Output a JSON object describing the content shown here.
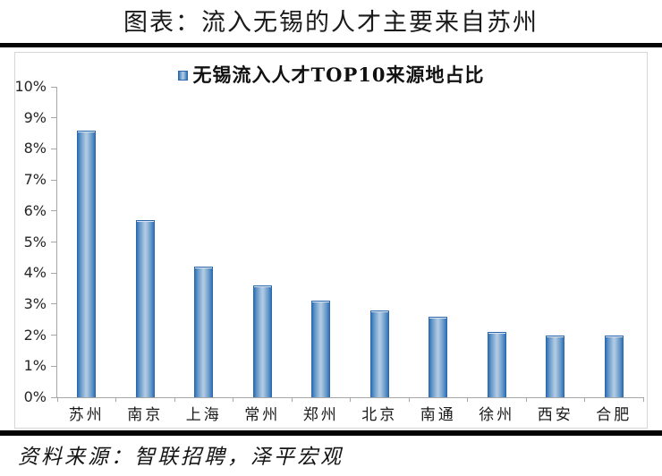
{
  "header": {
    "title": "图表：流入无锡的人才主要来自苏州"
  },
  "footer": {
    "source": "资料来源：智联招聘，泽平宏观"
  },
  "chart_data": {
    "type": "bar",
    "title": "无锡流入人才TOP10来源地占比",
    "legend_position": "top-center",
    "categories": [
      "苏州",
      "南京",
      "上海",
      "常州",
      "郑州",
      "北京",
      "南通",
      "徐州",
      "西安",
      "合肥"
    ],
    "values": [
      8.6,
      5.7,
      4.2,
      3.6,
      3.1,
      2.8,
      2.6,
      2.1,
      2.0,
      2.0
    ],
    "value_unit": "%",
    "xlabel": "",
    "ylabel": "",
    "ylim": [
      0,
      10
    ],
    "y_tick_step": 1,
    "y_tick_suffix": "%",
    "grid": false,
    "colors": {
      "bar_edge": "#3273b8",
      "bar_mid": "#aec8e1",
      "bar_border": "#2d68ae",
      "axis": "#a6a6a6",
      "divider": "#050505"
    }
  }
}
